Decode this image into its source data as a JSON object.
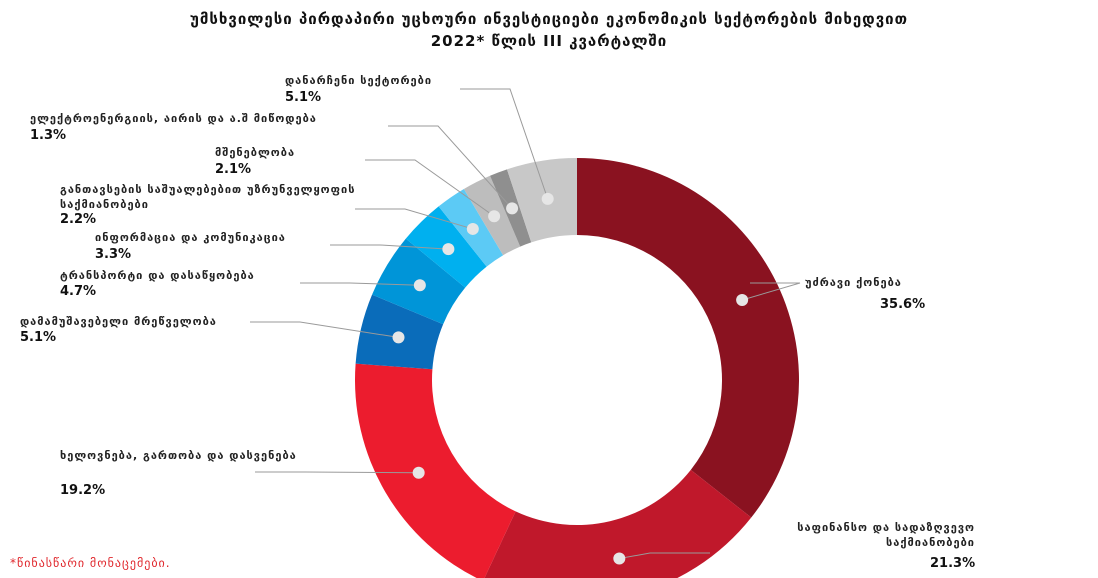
{
  "chart_data": {
    "type": "donut",
    "title": "უმსხვილესი პირდაპირი უცხოური ინვესტიციები ეკონომიკის სექტორების მიხედვით",
    "subtitle": "2022* წლის III კვარტალში",
    "categories": [
      "უძრავი ქონება",
      "საფინანსო და სადაზღვევო საქმიანობები",
      "ხელოვნება, გართობა და დასვენება",
      "დამამუშავებელი მრეწველობა",
      "ტრანსპორტი და დასაწყობება",
      "ინფორმაცია და კომუნიკაცია",
      "განთავსების საშუალებებით უზრუნველყოფის საქმიანობები",
      "მშენებლობა",
      "ელექტროენერგიის, აირის და ა.შ მიწოდება",
      "დანარჩენი სექტორები"
    ],
    "values": [
      35.6,
      21.3,
      19.2,
      5.1,
      4.7,
      3.3,
      2.2,
      2.1,
      1.3,
      5.1
    ],
    "value_labels": [
      "35.6%",
      "21.3%",
      "19.2%",
      "5.1%",
      "4.7%",
      "3.3%",
      "2.2%",
      "2.1%",
      "1.3%",
      "5.1%"
    ],
    "colors": [
      "#8a1220",
      "#c0182b",
      "#ec1c2e",
      "#0a6cba",
      "#0095d8",
      "#00b0ef",
      "#5ccaf5",
      "#bdbdbd",
      "#8f8f8f",
      "#c8c8c8"
    ],
    "footnote": "*წინასწარი მონაცემები."
  }
}
